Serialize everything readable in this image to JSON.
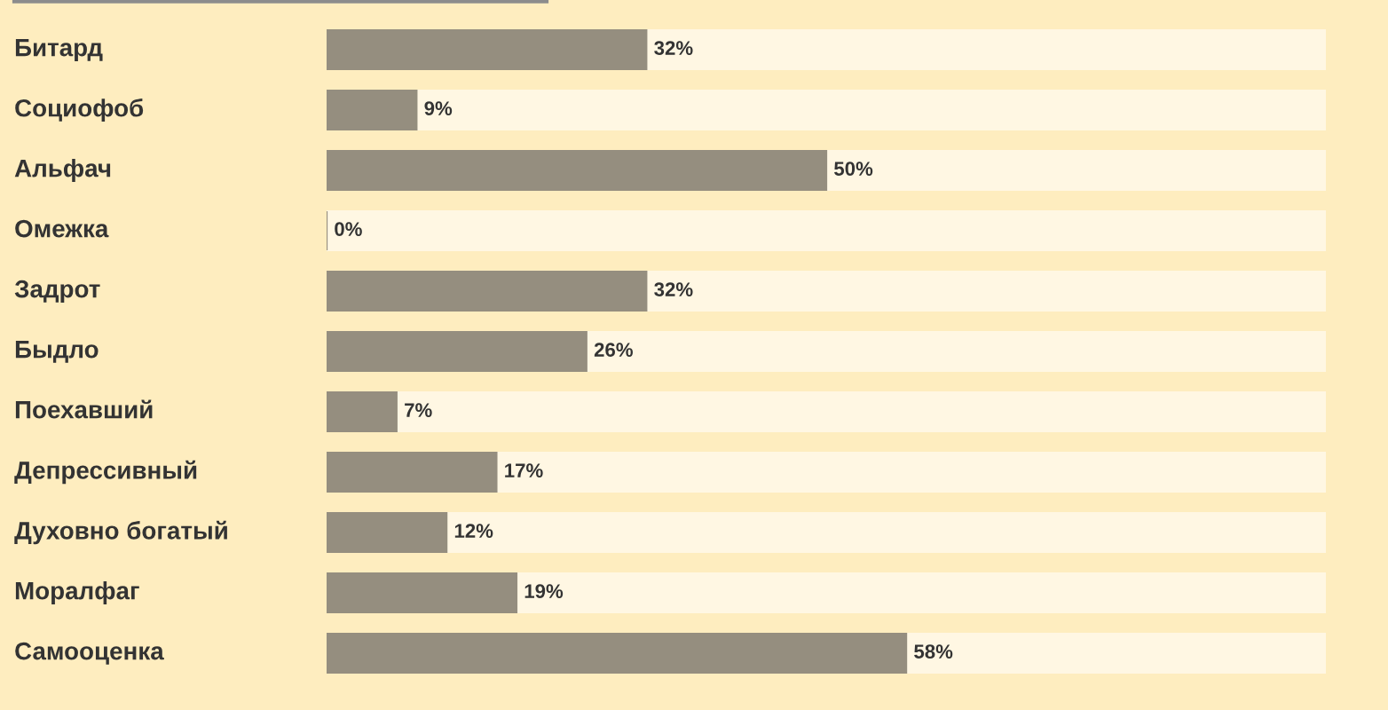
{
  "chart_data": {
    "type": "bar",
    "orientation": "horizontal",
    "stacked": true,
    "categories": [
      "Битард",
      "Социофоб",
      "Альфач",
      "Омежка",
      "Задрот",
      "Быдло",
      "Поехавший",
      "Депрессивный",
      "Духовно богатый",
      "Моралфаг",
      "Самооценка"
    ],
    "series": [
      {
        "color": "#958e7f",
        "values": [
          32,
          9,
          50,
          0,
          32,
          26,
          7,
          17,
          12,
          19,
          58
        ],
        "value_labels": [
          "32%",
          "9%",
          "50%",
          "0%",
          "32%",
          "26%",
          "7%",
          "17%",
          "12%",
          "19%",
          "58%"
        ]
      },
      {
        "color": "#fff7e3",
        "values": [
          68,
          91,
          50,
          100,
          68,
          74,
          93,
          83,
          88,
          81,
          42
        ]
      }
    ],
    "xlim": [
      0,
      100
    ],
    "tick_labels": "y"
  }
}
